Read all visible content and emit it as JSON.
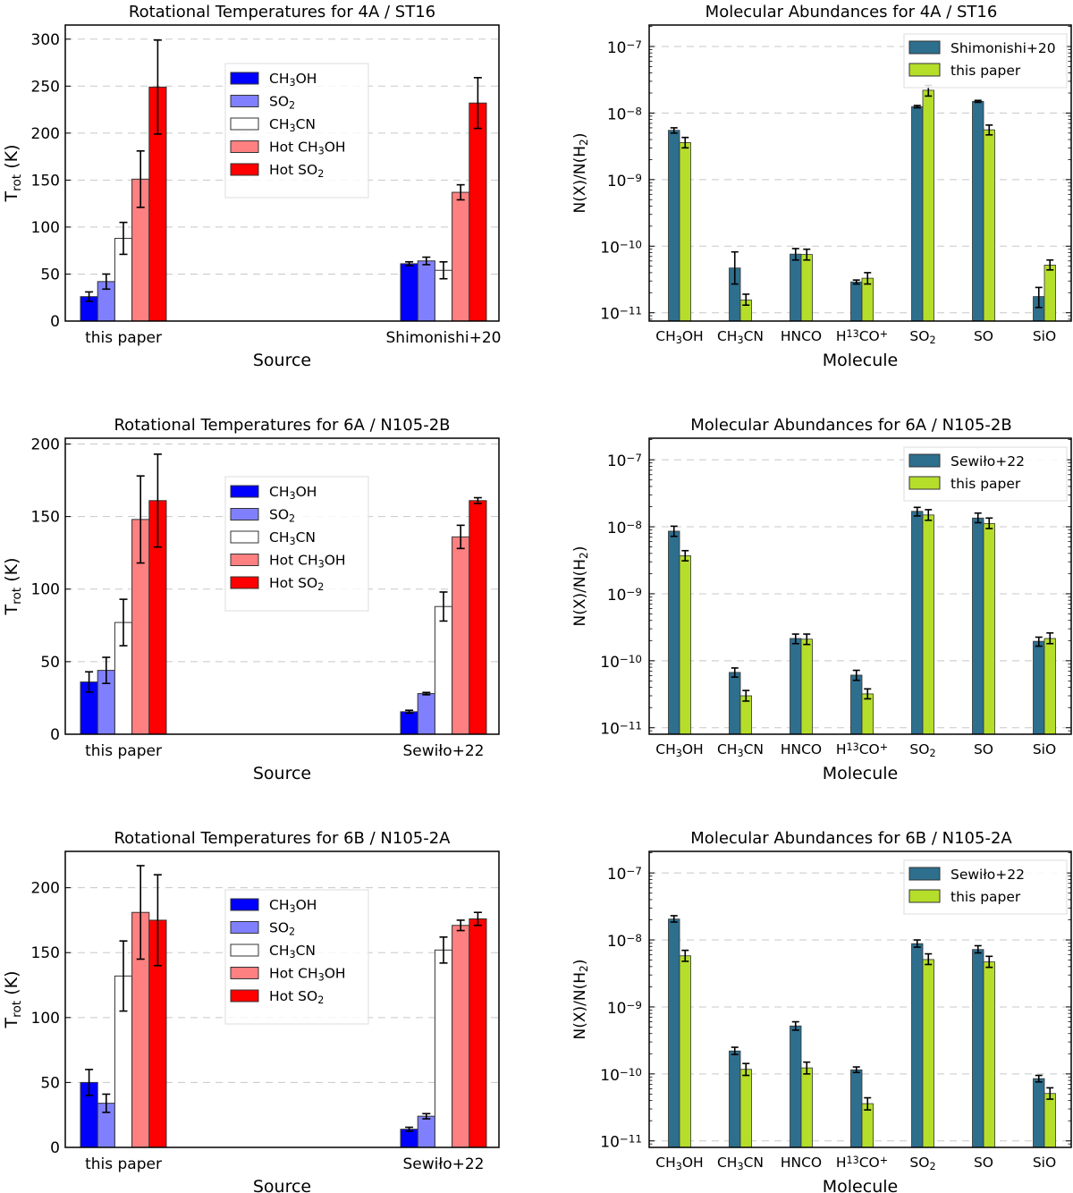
{
  "figure": {
    "colors": {
      "CH3OH": "#0000ff",
      "SO2": "#8080ff",
      "CH3CN": "#ffffff",
      "Hot CH3OH": "#ff8080",
      "Hot SO2": "#ff0000",
      "reference": "#2e6f8e",
      "this_paper": "#b5de2b",
      "grid": "#c8c8c8"
    }
  },
  "chart_data": [
    {
      "id": "temp-4a",
      "type": "bar",
      "title": "Rotational Temperatures for 4A / ST16",
      "xlabel": "Source",
      "ylabel": "T_rot (K)",
      "ylim": [
        0,
        315
      ],
      "yticks": [
        0,
        50,
        100,
        150,
        200,
        250,
        300
      ],
      "grid": "horizontal dashed",
      "legend_position": "upper-center",
      "categories": [
        "this paper",
        "Shimonishi+20"
      ],
      "series": [
        {
          "name": "CH3OH",
          "label": "CH₃OH",
          "values": [
            26,
            61
          ],
          "errors": [
            5,
            2
          ]
        },
        {
          "name": "SO2",
          "label": "SO₂",
          "values": [
            42,
            64
          ],
          "errors": [
            8,
            4
          ]
        },
        {
          "name": "CH3CN",
          "label": "CH₃CN",
          "values": [
            88,
            54
          ],
          "errors": [
            17,
            9
          ]
        },
        {
          "name": "Hot CH3OH",
          "label": "Hot CH₃OH",
          "values": [
            151,
            137
          ],
          "errors": [
            30,
            8
          ]
        },
        {
          "name": "Hot SO2",
          "label": "Hot SO₂",
          "values": [
            249,
            232
          ],
          "errors": [
            50,
            27
          ]
        }
      ]
    },
    {
      "id": "abund-4a",
      "type": "bar",
      "yscale": "log",
      "title": "Molecular Abundances for 4A / ST16",
      "xlabel": "Molecule",
      "ylabel": "N(X)/N(H₂)",
      "ylim": [
        7.5e-12,
        2.1e-07
      ],
      "yticks_exp": [
        -11,
        -10,
        -9,
        -8,
        -7
      ],
      "grid": "horizontal dashed",
      "legend_position": "upper-right",
      "categories": [
        "CH₃OH",
        "CH₃CN",
        "HNCO",
        "H¹³CO⁺",
        "SO₂",
        "SO",
        "SiO"
      ],
      "series": [
        {
          "name": "Shimonishi+20",
          "color_key": "reference",
          "values": [
            5.5e-09,
            4.7e-11,
            7.6e-11,
            2.9e-11,
            1.25e-08,
            1.5e-08,
            1.75e-11
          ],
          "err_lo": [
            5e-09,
            2.7e-11,
            6.2e-11,
            2.7e-11,
            1.2e-08,
            1.45e-08,
            1.2e-11
          ],
          "err_hi": [
            6e-09,
            8.2e-11,
            9.2e-11,
            3.1e-11,
            1.3e-08,
            1.55e-08,
            2.4e-11
          ]
        },
        {
          "name": "this paper",
          "color_key": "this_paper",
          "values": [
            3.6e-09,
            1.55e-11,
            7.5e-11,
            3.3e-11,
            2.2e-08,
            5.6e-09,
            5.2e-11
          ],
          "err_lo": [
            3e-09,
            1.3e-11,
            6.2e-11,
            2.7e-11,
            1.8e-08,
            4.7e-09,
            4.4e-11
          ],
          "err_hi": [
            4.3e-09,
            1.9e-11,
            9e-11,
            4e-11,
            2.6e-08,
            6.6e-09,
            6.2e-11
          ]
        }
      ]
    },
    {
      "id": "temp-6a",
      "type": "bar",
      "title": "Rotational Temperatures for 6A / N105-2B",
      "xlabel": "Source",
      "ylabel": "T_rot (K)",
      "ylim": [
        0,
        204
      ],
      "yticks": [
        0,
        50,
        100,
        150,
        200
      ],
      "grid": "horizontal dashed",
      "legend_position": "upper-center",
      "categories": [
        "this paper",
        "Sewiło+22"
      ],
      "series": [
        {
          "name": "CH3OH",
          "label": "CH₃OH",
          "values": [
            36,
            15.5
          ],
          "errors": [
            7,
            1
          ]
        },
        {
          "name": "SO2",
          "label": "SO₂",
          "values": [
            44,
            28
          ],
          "errors": [
            9,
            0.8
          ]
        },
        {
          "name": "CH3CN",
          "label": "CH₃CN",
          "values": [
            77,
            88
          ],
          "errors": [
            16,
            10
          ]
        },
        {
          "name": "Hot CH3OH",
          "label": "Hot CH₃OH",
          "values": [
            148,
            136
          ],
          "errors": [
            30,
            8
          ]
        },
        {
          "name": "Hot SO2",
          "label": "Hot SO₂",
          "values": [
            161,
            161
          ],
          "errors": [
            32,
            2
          ]
        }
      ]
    },
    {
      "id": "abund-6a",
      "type": "bar",
      "yscale": "log",
      "title": "Molecular Abundances for 6A / N105-2B",
      "xlabel": "Molecule",
      "ylabel": "N(X)/N(H₂)",
      "ylim": [
        8e-12,
        2.1e-07
      ],
      "yticks_exp": [
        -11,
        -10,
        -9,
        -8,
        -7
      ],
      "grid": "horizontal dashed",
      "legend_position": "upper-right",
      "categories": [
        "CH₃OH",
        "CH₃CN",
        "HNCO",
        "H¹³CO⁺",
        "SO₂",
        "SO",
        "SiO"
      ],
      "series": [
        {
          "name": "Sewiło+22",
          "color_key": "reference",
          "values": [
            8.6e-09,
            6.7e-11,
            2.15e-10,
            6.1e-11,
            1.7e-08,
            1.35e-08,
            1.95e-10
          ],
          "err_lo": [
            7.2e-09,
            5.7e-11,
            1.8e-10,
            5.1e-11,
            1.45e-08,
            1.15e-08,
            1.65e-10
          ],
          "err_hi": [
            1.02e-08,
            7.8e-11,
            2.5e-10,
            7.2e-11,
            1.95e-08,
            1.6e-08,
            2.25e-10
          ]
        },
        {
          "name": "this paper",
          "color_key": "this_paper",
          "values": [
            3.7e-09,
            3e-11,
            2.1e-10,
            3.2e-11,
            1.5e-08,
            1.12e-08,
            2.15e-10
          ],
          "err_lo": [
            3.1e-09,
            2.5e-11,
            1.75e-10,
            2.7e-11,
            1.25e-08,
            9.4e-09,
            1.8e-10
          ],
          "err_hi": [
            4.4e-09,
            3.6e-11,
            2.5e-10,
            3.8e-11,
            1.8e-08,
            1.35e-08,
            2.6e-10
          ]
        }
      ]
    },
    {
      "id": "temp-6b",
      "type": "bar",
      "title": "Rotational Temperatures for 6B / N105-2A",
      "xlabel": "Source",
      "ylabel": "T_rot (K)",
      "ylim": [
        0,
        228
      ],
      "yticks": [
        0,
        50,
        100,
        150,
        200
      ],
      "grid": "horizontal dashed",
      "legend_position": "upper-center",
      "categories": [
        "this paper",
        "Sewiło+22"
      ],
      "series": [
        {
          "name": "CH3OH",
          "label": "CH₃OH",
          "values": [
            50,
            14
          ],
          "errors": [
            10,
            1.5
          ]
        },
        {
          "name": "SO2",
          "label": "SO₂",
          "values": [
            34,
            24
          ],
          "errors": [
            7,
            2
          ]
        },
        {
          "name": "CH3CN",
          "label": "CH₃CN",
          "values": [
            132,
            152
          ],
          "errors": [
            27,
            10
          ]
        },
        {
          "name": "Hot CH3OH",
          "label": "Hot CH₃OH",
          "values": [
            181,
            171
          ],
          "errors": [
            36,
            4
          ]
        },
        {
          "name": "Hot SO2",
          "label": "Hot SO₂",
          "values": [
            175,
            176
          ],
          "errors": [
            35,
            5
          ]
        }
      ]
    },
    {
      "id": "abund-6b",
      "type": "bar",
      "yscale": "log",
      "title": "Molecular Abundances for 6B / N105-2A",
      "xlabel": "Molecule",
      "ylabel": "N(X)/N(H₂)",
      "ylim": [
        8e-12,
        2.1e-07
      ],
      "yticks_exp": [
        -11,
        -10,
        -9,
        -8,
        -7
      ],
      "grid": "horizontal dashed",
      "legend_position": "upper-right",
      "categories": [
        "CH₃OH",
        "CH₃CN",
        "HNCO",
        "H¹³CO⁺",
        "SO₂",
        "SO",
        "SiO"
      ],
      "series": [
        {
          "name": "Sewiło+22",
          "color_key": "reference",
          "values": [
            2.05e-08,
            2.2e-10,
            5.2e-10,
            1.15e-10,
            8.8e-09,
            7.2e-09,
            8.5e-11
          ],
          "err_lo": [
            1.85e-08,
            1.95e-10,
            4.5e-10,
            1.05e-10,
            7.8e-09,
            6.4e-09,
            7.6e-11
          ],
          "err_hi": [
            2.3e-08,
            2.5e-10,
            6e-10,
            1.27e-10,
            1e-08,
            8.2e-09,
            9.5e-11
          ]
        },
        {
          "name": "this paper",
          "color_key": "this_paper",
          "values": [
            5.8e-09,
            1.17e-10,
            1.23e-10,
            3.6e-11,
            5.1e-09,
            4.7e-09,
            5.1e-11
          ],
          "err_lo": [
            4.8e-09,
            9.5e-11,
            1e-10,
            2.9e-11,
            4.3e-09,
            3.9e-09,
            4.2e-11
          ],
          "err_hi": [
            7e-09,
            1.43e-10,
            1.5e-10,
            4.4e-11,
            6.2e-09,
            5.7e-09,
            6.2e-11
          ]
        }
      ]
    }
  ]
}
